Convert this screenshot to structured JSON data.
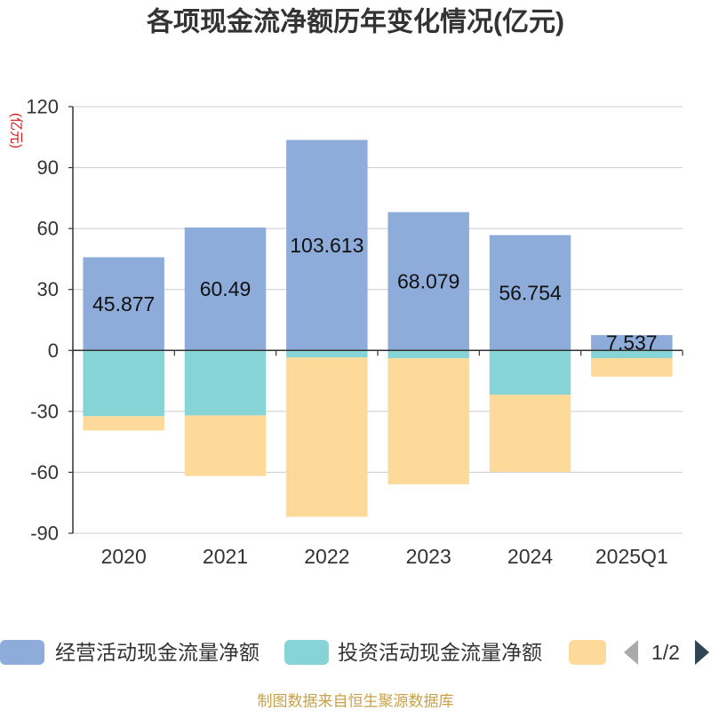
{
  "chart_data": {
    "type": "bar",
    "stacked": true,
    "title": "各项现金流净额历年变化情况(亿元)",
    "ylabel": "(亿元)",
    "xlabel": "",
    "categories": [
      "2020",
      "2021",
      "2022",
      "2023",
      "2024",
      "2025Q1"
    ],
    "ylim": [
      -90,
      120
    ],
    "yticks": [
      120,
      90,
      60,
      30,
      0,
      -30,
      -60,
      -90
    ],
    "grid": true,
    "legend_position": "bottom",
    "series": [
      {
        "name": "经营活动现金流量净额",
        "color": "#8eacda",
        "show_labels": true,
        "values": [
          45.877,
          60.49,
          103.613,
          68.079,
          56.754,
          7.537
        ]
      },
      {
        "name": "投资活动现金流量净额",
        "color": "#87d4d6",
        "show_labels": false,
        "values": [
          -32.4,
          -32.0,
          -3.5,
          -3.9,
          -21.8,
          -3.8
        ]
      },
      {
        "name": "",
        "color": "#fdd99a",
        "show_labels": false,
        "values": [
          -7.0,
          -29.8,
          -78.4,
          -62.0,
          -38.0,
          -9.1
        ]
      }
    ]
  },
  "legend": {
    "page_indicator": "1/2",
    "prev_color": "#aaaaaa",
    "next_color": "#2f4554"
  },
  "source": {
    "text": "制图数据来自恒生聚源数据库",
    "color": "#c8a14a"
  }
}
